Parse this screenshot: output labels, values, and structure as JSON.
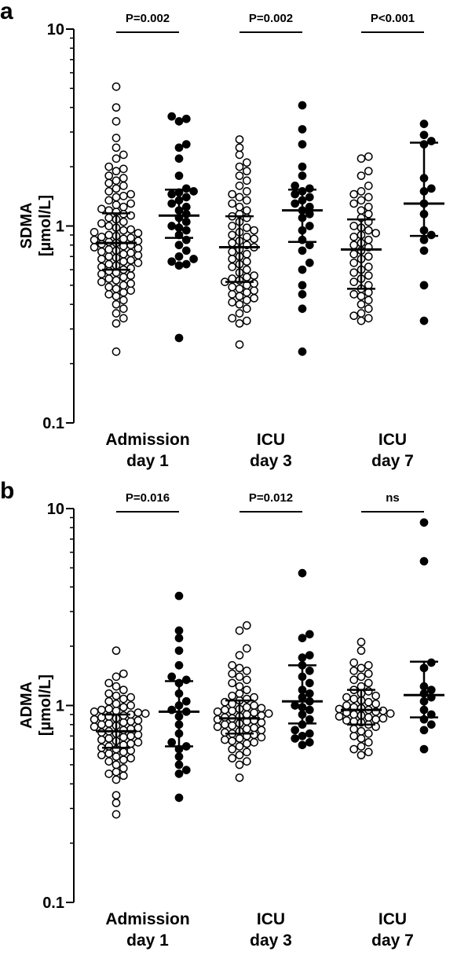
{
  "chart_data": [
    {
      "panel_label": "a",
      "type": "scatter",
      "ylabel_line1": "SDMA",
      "ylabel_line2": "[µmol/L]",
      "y_scale": "log",
      "ylim": [
        0.1,
        10
      ],
      "y_ticks": [
        0.1,
        1,
        10
      ],
      "y_tick_labels": [
        "0.1",
        "1",
        "10"
      ],
      "categories": [
        {
          "line1": "Admission",
          "line2": "day 1"
        },
        {
          "line1": "ICU",
          "line2": "day 3"
        },
        {
          "line1": "ICU",
          "line2": "day 7"
        }
      ],
      "comparisons": [
        "P=0.002",
        "P=0.002",
        "P<0.001"
      ],
      "groups": [
        {
          "category": 0,
          "fill": "open",
          "median": 0.82,
          "iqr": [
            0.6,
            1.16
          ],
          "values": [
            5.1,
            4.0,
            3.4,
            2.8,
            2.5,
            2.3,
            2.2,
            2.0,
            1.95,
            1.9,
            1.8,
            1.75,
            1.7,
            1.65,
            1.6,
            1.55,
            1.5,
            1.45,
            1.42,
            1.4,
            1.35,
            1.3,
            1.28,
            1.25,
            1.22,
            1.2,
            1.18,
            1.15,
            1.13,
            1.1,
            1.08,
            1.05,
            1.03,
            1.0,
            0.98,
            0.96,
            0.95,
            0.93,
            0.92,
            0.9,
            0.89,
            0.88,
            0.87,
            0.86,
            0.85,
            0.84,
            0.83,
            0.82,
            0.81,
            0.8,
            0.79,
            0.78,
            0.77,
            0.76,
            0.75,
            0.74,
            0.73,
            0.72,
            0.71,
            0.7,
            0.69,
            0.68,
            0.67,
            0.66,
            0.65,
            0.64,
            0.63,
            0.62,
            0.61,
            0.6,
            0.59,
            0.58,
            0.57,
            0.56,
            0.55,
            0.54,
            0.53,
            0.52,
            0.51,
            0.5,
            0.49,
            0.48,
            0.47,
            0.46,
            0.45,
            0.44,
            0.42,
            0.4,
            0.38,
            0.36,
            0.34,
            0.32,
            0.23
          ]
        },
        {
          "category": 0,
          "fill": "filled",
          "median": 1.13,
          "iqr": [
            0.87,
            1.53
          ],
          "values": [
            3.6,
            3.5,
            3.4,
            2.6,
            2.5,
            2.2,
            1.8,
            1.55,
            1.5,
            1.48,
            1.45,
            1.4,
            1.35,
            1.3,
            1.25,
            1.2,
            1.15,
            1.1,
            1.05,
            1.0,
            0.98,
            0.95,
            0.9,
            0.85,
            0.8,
            0.75,
            0.7,
            0.68,
            0.66,
            0.64,
            0.63,
            0.27
          ]
        },
        {
          "category": 1,
          "fill": "open",
          "median": 0.78,
          "iqr": [
            0.52,
            1.12
          ],
          "values": [
            2.75,
            2.5,
            2.3,
            2.1,
            2.0,
            1.9,
            1.8,
            1.7,
            1.6,
            1.5,
            1.45,
            1.4,
            1.35,
            1.3,
            1.25,
            1.2,
            1.15,
            1.12,
            1.1,
            1.05,
            1.0,
            0.98,
            0.95,
            0.93,
            0.9,
            0.88,
            0.86,
            0.84,
            0.82,
            0.8,
            0.78,
            0.76,
            0.74,
            0.72,
            0.7,
            0.68,
            0.66,
            0.64,
            0.62,
            0.6,
            0.58,
            0.56,
            0.55,
            0.54,
            0.53,
            0.52,
            0.51,
            0.5,
            0.49,
            0.48,
            0.47,
            0.46,
            0.45,
            0.44,
            0.43,
            0.42,
            0.41,
            0.4,
            0.38,
            0.36,
            0.34,
            0.33,
            0.32,
            0.25
          ]
        },
        {
          "category": 1,
          "fill": "filled",
          "median": 1.2,
          "iqr": [
            0.83,
            1.53
          ],
          "values": [
            4.1,
            3.1,
            2.6,
            2.0,
            1.8,
            1.6,
            1.55,
            1.5,
            1.45,
            1.4,
            1.35,
            1.3,
            1.25,
            1.2,
            1.15,
            1.1,
            1.0,
            0.95,
            0.85,
            0.8,
            0.75,
            0.65,
            0.6,
            0.5,
            0.45,
            0.38,
            0.23
          ]
        },
        {
          "category": 2,
          "fill": "open",
          "median": 0.76,
          "iqr": [
            0.48,
            1.08
          ],
          "values": [
            2.25,
            2.2,
            1.9,
            1.8,
            1.6,
            1.5,
            1.45,
            1.4,
            1.35,
            1.3,
            1.25,
            1.2,
            1.15,
            1.1,
            1.05,
            1.0,
            0.98,
            0.95,
            0.92,
            0.9,
            0.88,
            0.85,
            0.82,
            0.8,
            0.78,
            0.75,
            0.72,
            0.7,
            0.68,
            0.65,
            0.62,
            0.6,
            0.58,
            0.56,
            0.54,
            0.52,
            0.5,
            0.48,
            0.46,
            0.45,
            0.44,
            0.42,
            0.4,
            0.38,
            0.36,
            0.35,
            0.34,
            0.33
          ]
        },
        {
          "category": 2,
          "fill": "filled",
          "median": 1.3,
          "iqr": [
            0.89,
            2.65
          ],
          "values": [
            3.3,
            2.9,
            2.7,
            2.6,
            1.75,
            1.55,
            1.5,
            1.3,
            1.15,
            0.95,
            0.9,
            0.85,
            0.75,
            0.5,
            0.33
          ]
        }
      ]
    },
    {
      "panel_label": "b",
      "type": "scatter",
      "ylabel_line1": "ADMA",
      "ylabel_line2": "[µmol/L]",
      "y_scale": "log",
      "ylim": [
        0.1,
        10
      ],
      "y_ticks": [
        0.1,
        1,
        10
      ],
      "y_tick_labels": [
        "0.1",
        "1",
        "10"
      ],
      "categories": [
        {
          "line1": "Admission",
          "line2": "day 1"
        },
        {
          "line1": "ICU",
          "line2": "day 3"
        },
        {
          "line1": "ICU",
          "line2": "day 7"
        }
      ],
      "comparisons": [
        "P=0.016",
        "P=0.012",
        "ns"
      ],
      "groups": [
        {
          "category": 0,
          "fill": "open",
          "median": 0.74,
          "iqr": [
            0.61,
            0.9
          ],
          "values": [
            1.9,
            1.45,
            1.4,
            1.3,
            1.25,
            1.2,
            1.15,
            1.12,
            1.1,
            1.08,
            1.05,
            1.02,
            1.0,
            0.98,
            0.96,
            0.95,
            0.94,
            0.93,
            0.92,
            0.91,
            0.9,
            0.89,
            0.88,
            0.87,
            0.86,
            0.85,
            0.84,
            0.83,
            0.82,
            0.81,
            0.8,
            0.79,
            0.78,
            0.77,
            0.76,
            0.75,
            0.74,
            0.73,
            0.72,
            0.71,
            0.7,
            0.69,
            0.68,
            0.67,
            0.66,
            0.65,
            0.64,
            0.63,
            0.62,
            0.61,
            0.6,
            0.59,
            0.58,
            0.57,
            0.56,
            0.55,
            0.54,
            0.53,
            0.52,
            0.5,
            0.48,
            0.46,
            0.45,
            0.44,
            0.42,
            0.35,
            0.32,
            0.28
          ]
        },
        {
          "category": 0,
          "fill": "filled",
          "median": 0.93,
          "iqr": [
            0.62,
            1.33
          ],
          "values": [
            3.6,
            2.4,
            2.2,
            1.9,
            1.6,
            1.4,
            1.35,
            1.3,
            1.15,
            1.05,
            1.0,
            0.95,
            0.93,
            0.88,
            0.8,
            0.72,
            0.65,
            0.62,
            0.6,
            0.55,
            0.5,
            0.47,
            0.45,
            0.34
          ]
        },
        {
          "category": 1,
          "fill": "open",
          "median": 0.86,
          "iqr": [
            0.72,
            1.06
          ],
          "values": [
            2.55,
            2.4,
            1.95,
            1.8,
            1.6,
            1.55,
            1.5,
            1.45,
            1.4,
            1.35,
            1.3,
            1.25,
            1.2,
            1.15,
            1.12,
            1.1,
            1.08,
            1.06,
            1.04,
            1.02,
            1.0,
            0.98,
            0.97,
            0.96,
            0.95,
            0.94,
            0.93,
            0.92,
            0.91,
            0.9,
            0.89,
            0.88,
            0.87,
            0.86,
            0.85,
            0.84,
            0.83,
            0.82,
            0.81,
            0.8,
            0.79,
            0.78,
            0.77,
            0.76,
            0.75,
            0.74,
            0.73,
            0.72,
            0.71,
            0.7,
            0.69,
            0.68,
            0.67,
            0.66,
            0.65,
            0.64,
            0.62,
            0.6,
            0.58,
            0.56,
            0.54,
            0.52,
            0.5,
            0.43
          ]
        },
        {
          "category": 1,
          "fill": "filled",
          "median": 1.05,
          "iqr": [
            0.81,
            1.6
          ],
          "values": [
            4.7,
            2.3,
            2.2,
            1.8,
            1.75,
            1.6,
            1.5,
            1.4,
            1.3,
            1.2,
            1.15,
            1.1,
            1.05,
            1.0,
            0.98,
            0.95,
            0.9,
            0.85,
            0.8,
            0.75,
            0.72,
            0.7,
            0.68,
            0.65,
            0.63
          ]
        },
        {
          "category": 2,
          "fill": "open",
          "median": 0.95,
          "iqr": [
            0.8,
            1.2
          ],
          "values": [
            2.1,
            1.9,
            1.65,
            1.6,
            1.55,
            1.5,
            1.45,
            1.4,
            1.35,
            1.3,
            1.25,
            1.2,
            1.18,
            1.15,
            1.12,
            1.1,
            1.08,
            1.06,
            1.04,
            1.02,
            1.0,
            0.98,
            0.97,
            0.96,
            0.95,
            0.94,
            0.93,
            0.92,
            0.91,
            0.9,
            0.89,
            0.88,
            0.87,
            0.86,
            0.85,
            0.84,
            0.83,
            0.82,
            0.8,
            0.78,
            0.76,
            0.74,
            0.72,
            0.7,
            0.68,
            0.65,
            0.62,
            0.6,
            0.58,
            0.56
          ]
        },
        {
          "category": 2,
          "fill": "filled",
          "median": 1.13,
          "iqr": [
            0.87,
            1.67
          ],
          "values": [
            8.5,
            5.4,
            1.65,
            1.55,
            1.25,
            1.2,
            1.15,
            1.1,
            1.05,
            0.95,
            0.9,
            0.85,
            0.8,
            0.75,
            0.6
          ]
        }
      ]
    }
  ]
}
